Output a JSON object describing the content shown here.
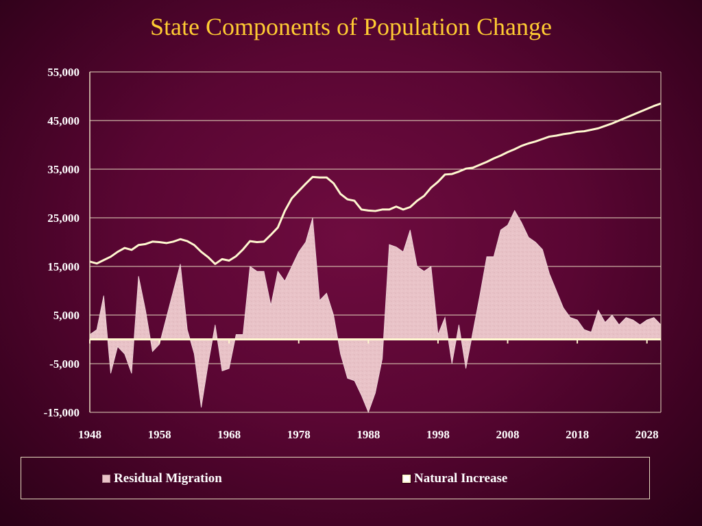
{
  "title": "State Components of Population Change",
  "colors": {
    "title": "#ffcc33",
    "line": "#fff8d0",
    "area": "#e9c3c8",
    "grid": "#e8dcc0",
    "text": "#ffffff"
  },
  "legend": {
    "residual": "Residual Migration",
    "natural": "Natural Increase",
    "placement": "bottom"
  },
  "chart_data": {
    "type": "line",
    "title": "State Components of Population Change",
    "xlabel": "",
    "ylabel": "",
    "xlim": [
      1948,
      2030
    ],
    "ylim": [
      -15000,
      55000
    ],
    "y_ticks": [
      55000,
      45000,
      35000,
      25000,
      15000,
      5000,
      -5000,
      -15000
    ],
    "y_tick_labels": [
      "55,000",
      "45,000",
      "35,000",
      "25,000",
      "15,000",
      "5,000",
      "-5,000",
      "-15,000"
    ],
    "x_ticks": [
      1948,
      1958,
      1968,
      1978,
      1988,
      1998,
      2008,
      2018,
      2028
    ],
    "x_tick_labels": [
      "1948",
      "1958",
      "1968",
      "1978",
      "1988",
      "1998",
      "2008",
      "2018",
      "2028"
    ],
    "grid": true,
    "series": [
      {
        "name": "Natural Increase",
        "kind": "line",
        "x": [
          1948,
          1949,
          1950,
          1951,
          1952,
          1953,
          1954,
          1955,
          1956,
          1957,
          1958,
          1959,
          1960,
          1961,
          1962,
          1963,
          1964,
          1965,
          1966,
          1967,
          1968,
          1969,
          1970,
          1971,
          1972,
          1973,
          1974,
          1975,
          1976,
          1977,
          1978,
          1979,
          1980,
          1981,
          1982,
          1983,
          1984,
          1985,
          1986,
          1987,
          1988,
          1989,
          1990,
          1991,
          1992,
          1993,
          1994,
          1995,
          1996,
          1997,
          1998,
          1999,
          2000,
          2001,
          2002,
          2003,
          2004,
          2005,
          2006,
          2007,
          2008,
          2009,
          2010,
          2011,
          2012,
          2013,
          2014,
          2015,
          2016,
          2017,
          2018,
          2019,
          2020,
          2021,
          2022,
          2023,
          2024,
          2025,
          2026,
          2027,
          2028,
          2029,
          2030
        ],
        "values": [
          16000,
          15600,
          16300,
          17000,
          18000,
          18800,
          18400,
          19400,
          19600,
          20100,
          20000,
          19800,
          20100,
          20600,
          20200,
          19400,
          18000,
          16900,
          15500,
          16500,
          16200,
          17100,
          18500,
          20200,
          20000,
          20100,
          21500,
          23000,
          26400,
          29000,
          30500,
          32000,
          33400,
          33300,
          33300,
          32100,
          29900,
          28800,
          28500,
          26700,
          26500,
          26400,
          26700,
          26700,
          27300,
          26700,
          27200,
          28500,
          29500,
          31200,
          32400,
          33900,
          34000,
          34500,
          35100,
          35300,
          35900,
          36500,
          37200,
          37800,
          38500,
          39100,
          39800,
          40300,
          40700,
          41200,
          41700,
          41900,
          42200,
          42400,
          42700,
          42800,
          43100,
          43400,
          43900,
          44400,
          45000,
          45600,
          46200,
          46800,
          47400,
          48000,
          48500
        ]
      },
      {
        "name": "Residual Migration",
        "kind": "area",
        "x": [
          1948,
          1949,
          1950,
          1951,
          1952,
          1953,
          1954,
          1955,
          1956,
          1957,
          1958,
          1959,
          1960,
          1961,
          1962,
          1963,
          1964,
          1965,
          1966,
          1967,
          1968,
          1969,
          1970,
          1971,
          1972,
          1973,
          1974,
          1975,
          1976,
          1977,
          1978,
          1979,
          1980,
          1981,
          1982,
          1983,
          1984,
          1985,
          1986,
          1987,
          1988,
          1989,
          1990,
          1991,
          1992,
          1993,
          1994,
          1995,
          1996,
          1997,
          1998,
          1999,
          2000,
          2001,
          2002,
          2003,
          2004,
          2005,
          2006,
          2007,
          2008,
          2009,
          2010,
          2011,
          2012,
          2013,
          2014,
          2015,
          2016,
          2017,
          2018,
          2019,
          2020,
          2021,
          2022,
          2023,
          2024,
          2025,
          2026,
          2027,
          2028,
          2029,
          2030
        ],
        "values": [
          1000,
          2000,
          9000,
          -7000,
          -1500,
          -3000,
          -7000,
          13000,
          6000,
          -2500,
          -1000,
          4500,
          10000,
          15500,
          2000,
          -3000,
          -14000,
          -5000,
          3000,
          -6500,
          -6000,
          1000,
          1000,
          15000,
          14000,
          14000,
          7000,
          14000,
          12000,
          15000,
          18000,
          20000,
          25000,
          8000,
          9500,
          5000,
          -3000,
          -8000,
          -8500,
          -11500,
          -15000,
          -11000,
          -4000,
          19500,
          19000,
          18000,
          22500,
          15000,
          14000,
          15000,
          1000,
          4500,
          -5000,
          3000,
          -6000,
          1500,
          9000,
          17000,
          17000,
          22500,
          23500,
          26500,
          24000,
          21000,
          20000,
          18500,
          13500,
          10000,
          6500,
          4500,
          4000,
          2000,
          1500,
          6000,
          3500,
          5000,
          3000,
          4500,
          4000,
          3000,
          4000,
          4500,
          3000
        ]
      }
    ]
  }
}
